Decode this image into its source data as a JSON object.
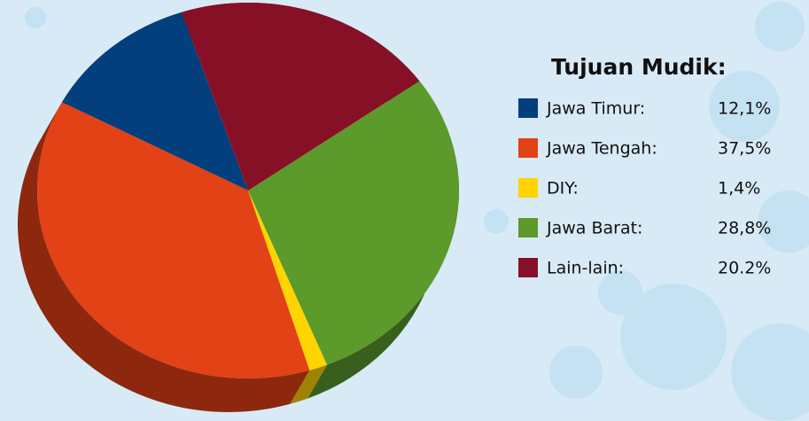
{
  "chart_data": {
    "type": "pie",
    "legend_title": "Tujuan Mudik:",
    "categories": [
      "Jawa Timur:",
      "Jawa Tengah:",
      "DIY:",
      "Jawa Barat:",
      "Lain-lain:"
    ],
    "values": [
      12.1,
      37.5,
      1.4,
      28.8,
      20.2
    ],
    "value_labels": [
      "12,1%",
      "37,5%",
      "1,4%",
      "28,8%",
      "20.2%"
    ],
    "colors": [
      "#023f7c",
      "#e34116",
      "#ffd400",
      "#5b9a2b",
      "#861126"
    ],
    "legend": "right"
  }
}
